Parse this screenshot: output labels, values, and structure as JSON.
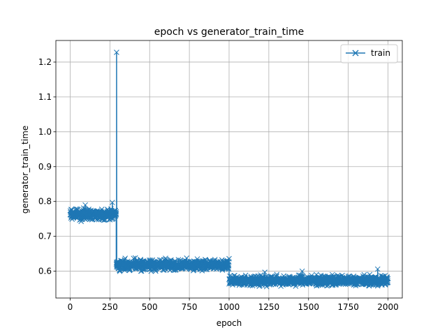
{
  "chart_data": {
    "type": "line",
    "title": "epoch vs generator_train_time",
    "xlabel": "epoch",
    "ylabel": "generator_train_time",
    "xlim": [
      -90,
      2090
    ],
    "ylim": [
      0.523,
      1.262
    ],
    "xticks": [
      0,
      250,
      500,
      750,
      1000,
      1250,
      1500,
      1750,
      2000
    ],
    "yticks": [
      0.6,
      0.7,
      0.8,
      0.9,
      1.0,
      1.1,
      1.2
    ],
    "xtick_labels": [
      "0",
      "250",
      "500",
      "750",
      "1000",
      "1250",
      "1500",
      "1750",
      "2000"
    ],
    "ytick_labels": [
      "0.6",
      "0.7",
      "0.8",
      "0.9",
      "1.0",
      "1.1",
      "1.2"
    ],
    "grid": true,
    "legend_position": "top-right",
    "marker": "x",
    "series": [
      {
        "name": "train",
        "color": "#1f77b4",
        "segments": [
          {
            "x_start": 0,
            "x_end": 290,
            "level": 0.763,
            "noise": 0.012
          },
          {
            "x_start": 290,
            "x_end": 1000,
            "level": 0.618,
            "noise": 0.012
          },
          {
            "x_start": 1000,
            "x_end": 2000,
            "level": 0.573,
            "noise": 0.011
          }
        ],
        "points": [
          {
            "x": 95,
            "y": 0.79
          },
          {
            "x": 265,
            "y": 0.797
          },
          {
            "x": 290,
            "y": 0.765
          },
          {
            "x": 292,
            "y": 1.228
          },
          {
            "x": 296,
            "y": 0.62
          },
          {
            "x": 445,
            "y": 0.6
          },
          {
            "x": 600,
            "y": 0.637
          },
          {
            "x": 800,
            "y": 0.635
          },
          {
            "x": 1010,
            "y": 0.565
          },
          {
            "x": 1225,
            "y": 0.597
          },
          {
            "x": 1460,
            "y": 0.6
          },
          {
            "x": 1650,
            "y": 0.59
          },
          {
            "x": 1935,
            "y": 0.606
          }
        ]
      }
    ]
  }
}
